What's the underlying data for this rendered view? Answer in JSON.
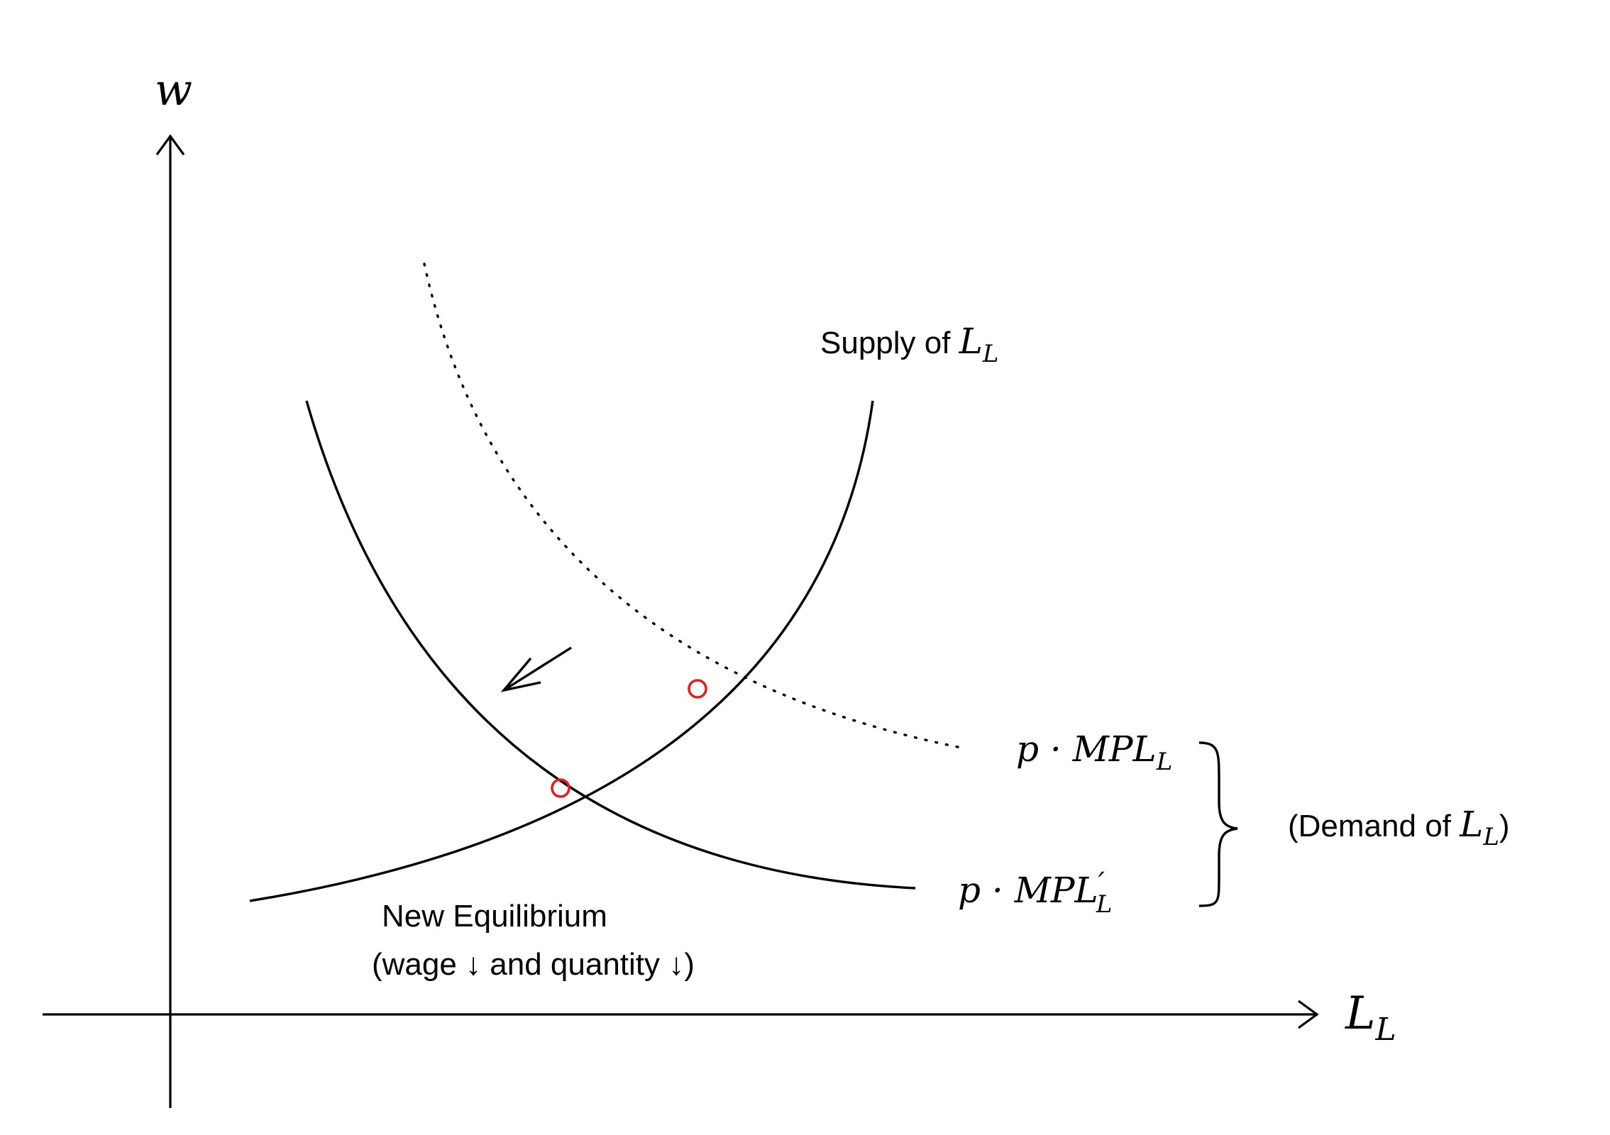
{
  "axes": {
    "y_label": "w",
    "x_label_main": "L",
    "x_label_sub": "L"
  },
  "labels": {
    "supply_text": "Supply of ",
    "supply_var": "L",
    "supply_sub": "L",
    "demand_original_prefix": "p · MPL",
    "demand_original_sub": "L",
    "demand_new_prefix": "p · MPL",
    "demand_new_prime": "′",
    "demand_new_sub": "L",
    "demand_group_open": "(Demand of ",
    "demand_group_var": "L",
    "demand_group_sub": "L",
    "demand_group_close": ")",
    "new_equilibrium_line1": "New Equilibrium",
    "new_equilibrium_line2": "(wage ↓ and quantity ↓)"
  },
  "colors": {
    "ink": "#000000",
    "equilibrium_marker": "#e02020"
  }
}
